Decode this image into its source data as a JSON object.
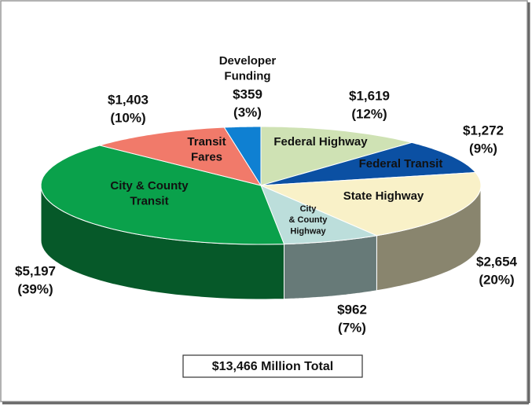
{
  "chart_data": {
    "type": "pie3d",
    "total_label": "$13,466 Million Total",
    "labels": [
      [
        "Federal Highway"
      ],
      [
        "Federal Transit"
      ],
      [
        "State Highway"
      ],
      [
        "City",
        "& County",
        "Highway"
      ],
      [
        "City & County",
        "Transit"
      ],
      [
        "Transit",
        "Fares"
      ],
      [
        "Developer",
        "Funding"
      ]
    ],
    "values": [
      1619,
      1272,
      2654,
      962,
      5197,
      1403,
      359
    ],
    "value_labels": [
      "$1,619",
      "$1,272",
      "$2,654",
      "$962",
      "$5,197",
      "$1,403",
      "$359"
    ],
    "percent_labels": [
      "(12%)",
      "(9%)",
      "(20%)",
      "(7%)",
      "(39%)",
      "(10%)",
      "(3%)"
    ],
    "colors": [
      "#cfe2b4",
      "#0b50a3",
      "#f9f1c8",
      "#bcdedb",
      "#0aa14b",
      "#f17a6a",
      "#0f80d2"
    ]
  }
}
